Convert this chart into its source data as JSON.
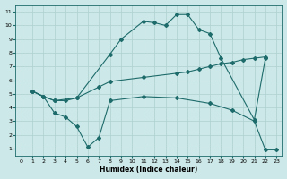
{
  "xlabel": "Humidex (Indice chaleur)",
  "bg_color": "#cde8e8",
  "line_color": "#1e6b6b",
  "grid_color": "#aed0d0",
  "xlim": [
    -0.5,
    23.5
  ],
  "ylim": [
    0.5,
    11.5
  ],
  "xticks": [
    0,
    1,
    2,
    3,
    4,
    5,
    6,
    7,
    8,
    9,
    10,
    11,
    12,
    13,
    14,
    15,
    16,
    17,
    18,
    19,
    20,
    21,
    22,
    23
  ],
  "yticks": [
    1,
    2,
    3,
    4,
    5,
    6,
    7,
    8,
    9,
    10,
    11
  ],
  "line1_x": [
    1,
    2,
    3,
    4,
    5,
    8,
    9,
    11,
    12,
    13,
    14,
    15,
    16,
    17,
    18,
    21,
    22
  ],
  "line1_y": [
    5.2,
    4.8,
    4.5,
    4.5,
    4.7,
    7.9,
    9.0,
    10.3,
    10.2,
    10.0,
    10.8,
    10.8,
    9.7,
    9.4,
    7.6,
    3.1,
    7.6
  ],
  "line2_x": [
    1,
    2,
    3,
    5,
    7,
    8,
    11,
    14,
    15,
    16,
    17,
    18,
    19,
    20,
    21,
    22
  ],
  "line2_y": [
    5.2,
    4.8,
    4.5,
    4.7,
    5.5,
    5.9,
    6.2,
    6.5,
    6.6,
    6.8,
    7.0,
    7.2,
    7.3,
    7.5,
    7.6,
    7.7
  ],
  "line3_x": [
    1,
    2,
    3,
    4,
    5,
    6,
    7,
    8,
    11,
    14,
    17,
    19,
    21,
    22,
    23
  ],
  "line3_y": [
    5.2,
    4.8,
    3.6,
    3.3,
    2.6,
    1.1,
    1.8,
    4.5,
    4.8,
    4.7,
    4.3,
    3.8,
    3.0,
    0.9,
    0.9
  ]
}
